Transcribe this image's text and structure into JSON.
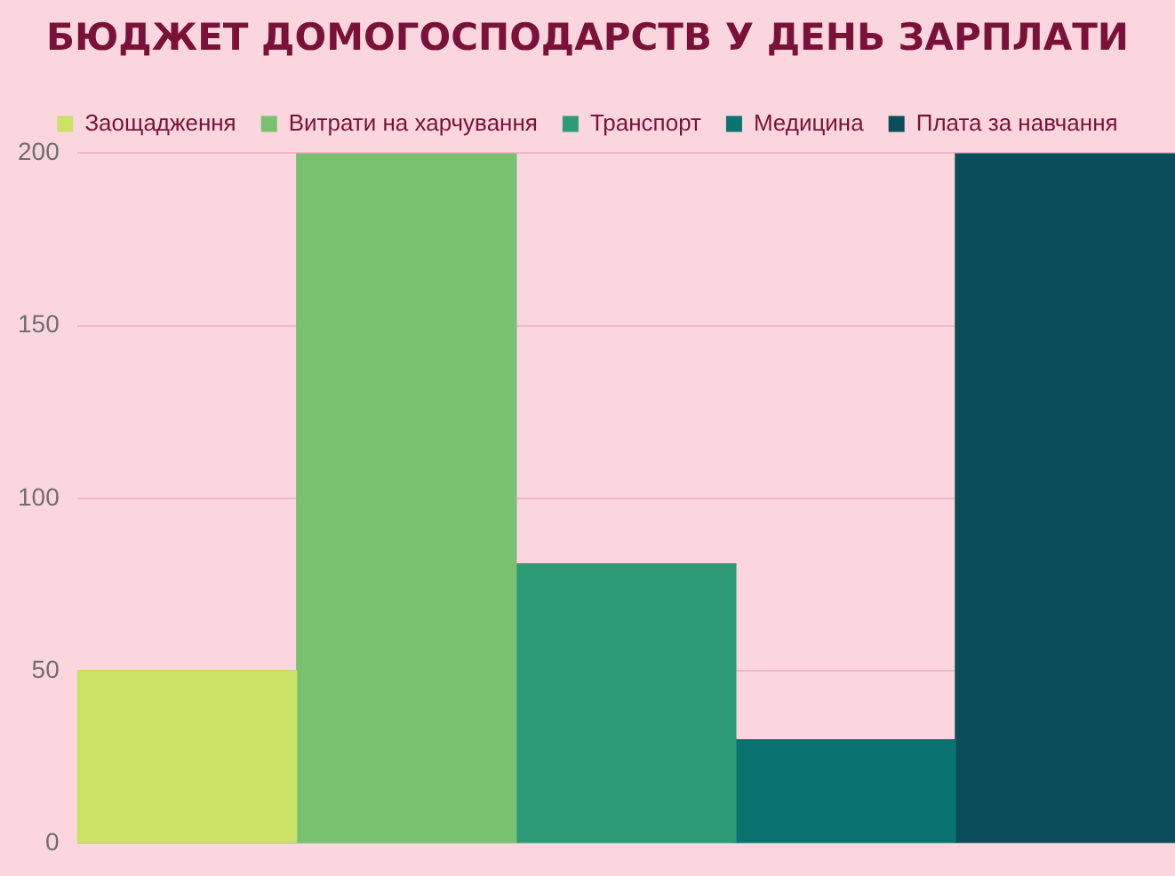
{
  "chart_data": {
    "type": "bar",
    "title": "БЮДЖЕТ ДОМОГОСПОДАРСТВ У ДЕНЬ ЗАРПЛАТИ",
    "categories": [
      null
    ],
    "series": [
      {
        "name": "Заощадження",
        "color": "#c9e265",
        "values": [
          50
        ]
      },
      {
        "name": "Витрати на харчування",
        "color": "#77c16f",
        "values": [
          200
        ]
      },
      {
        "name": "Транспорт",
        "color": "#2e9b78",
        "values": [
          81
        ]
      },
      {
        "name": "Медицина",
        "color": "#0a7371",
        "values": [
          30
        ]
      },
      {
        "name": "Плата за навчання",
        "color": "#0b4d5a",
        "values": [
          200
        ]
      }
    ],
    "ylim": [
      0,
      200
    ],
    "yticks": [
      0,
      50,
      100,
      150,
      200
    ],
    "grid": "y",
    "legend": "top"
  }
}
